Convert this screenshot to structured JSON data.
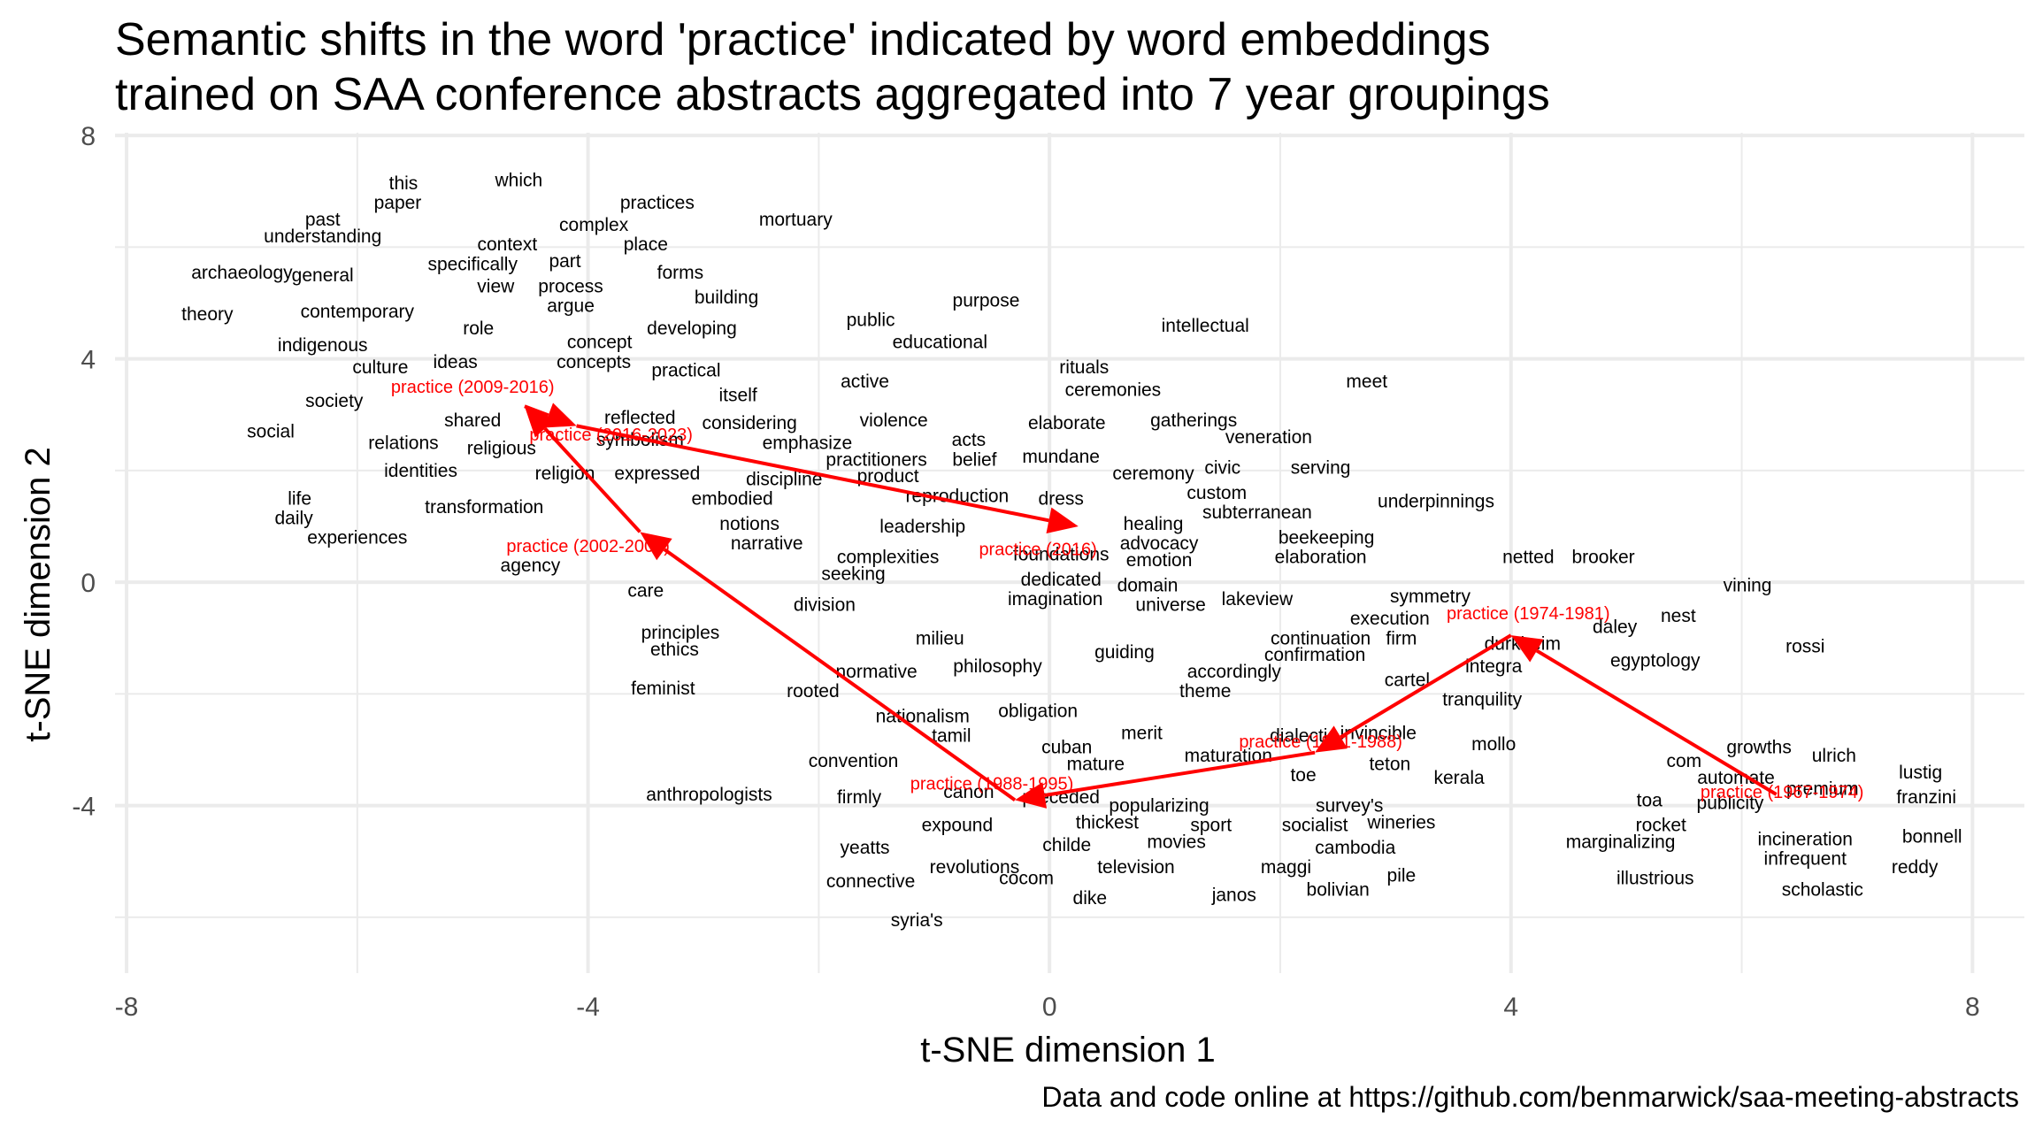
{
  "chart_data": {
    "type": "scatter",
    "title_lines": [
      "Semantic shifts in the word 'practice' indicated by word embeddings",
      "trained on SAA conference abstracts aggregated into 7 year groupings"
    ],
    "xlabel": "t-SNE dimension 1",
    "ylabel": "t-SNE dimension 2",
    "caption": "Data and code online at https://github.com/benmarwick/saa-meeting-abstracts",
    "xlim": [
      -8.1,
      8.45
    ],
    "ylim": [
      -7.0,
      8.05
    ],
    "xticks": [
      -8,
      -4,
      0,
      4,
      8
    ],
    "yticks": [
      -4,
      0,
      4,
      8
    ],
    "grid": true,
    "colors": {
      "word": "#000000",
      "practice": "#ff0000",
      "grid": "#ebebeb",
      "tick": "#4d4d4d"
    },
    "words": [
      {
        "label": "this",
        "x": -5.6,
        "y": 7.15
      },
      {
        "label": "which",
        "x": -4.6,
        "y": 7.2
      },
      {
        "label": "paper",
        "x": -5.65,
        "y": 6.8
      },
      {
        "label": "past",
        "x": -6.3,
        "y": 6.5
      },
      {
        "label": "understanding",
        "x": -6.3,
        "y": 6.2
      },
      {
        "label": "practices",
        "x": -3.4,
        "y": 6.8
      },
      {
        "label": "mortuary",
        "x": -2.2,
        "y": 6.5
      },
      {
        "label": "complex",
        "x": -3.95,
        "y": 6.4
      },
      {
        "label": "context",
        "x": -4.7,
        "y": 6.05
      },
      {
        "label": "place",
        "x": -3.5,
        "y": 6.05
      },
      {
        "label": "archaeology",
        "x": -7.0,
        "y": 5.55
      },
      {
        "label": "general",
        "x": -6.3,
        "y": 5.5
      },
      {
        "label": "specifically",
        "x": -5.0,
        "y": 5.7
      },
      {
        "label": "part",
        "x": -4.2,
        "y": 5.75
      },
      {
        "label": "forms",
        "x": -3.2,
        "y": 5.55
      },
      {
        "label": "view",
        "x": -4.8,
        "y": 5.3
      },
      {
        "label": "process",
        "x": -4.15,
        "y": 5.3
      },
      {
        "label": "building",
        "x": -2.8,
        "y": 5.1
      },
      {
        "label": "purpose",
        "x": -0.55,
        "y": 5.05
      },
      {
        "label": "theory",
        "x": -7.3,
        "y": 4.8
      },
      {
        "label": "contemporary",
        "x": -6.0,
        "y": 4.85
      },
      {
        "label": "argue",
        "x": -4.15,
        "y": 4.95
      },
      {
        "label": "public",
        "x": -1.55,
        "y": 4.7
      },
      {
        "label": "intellectual",
        "x": 1.35,
        "y": 4.6
      },
      {
        "label": "role",
        "x": -4.95,
        "y": 4.55
      },
      {
        "label": "developing",
        "x": -3.1,
        "y": 4.55
      },
      {
        "label": "educational",
        "x": -0.95,
        "y": 4.3
      },
      {
        "label": "indigenous",
        "x": -6.3,
        "y": 4.25
      },
      {
        "label": "concept",
        "x": -3.9,
        "y": 4.3
      },
      {
        "label": "ideas",
        "x": -5.15,
        "y": 3.95
      },
      {
        "label": "concepts",
        "x": -3.95,
        "y": 3.95
      },
      {
        "label": "culture",
        "x": -5.8,
        "y": 3.85
      },
      {
        "label": "practical",
        "x": -3.15,
        "y": 3.8
      },
      {
        "label": "rituals",
        "x": 0.3,
        "y": 3.85
      },
      {
        "label": "active",
        "x": -1.6,
        "y": 3.6
      },
      {
        "label": "meet",
        "x": 2.75,
        "y": 3.6
      },
      {
        "label": "ceremonies",
        "x": 0.55,
        "y": 3.45
      },
      {
        "label": "itself",
        "x": -2.7,
        "y": 3.35
      },
      {
        "label": "society",
        "x": -6.2,
        "y": 3.25
      },
      {
        "label": "shared",
        "x": -5.0,
        "y": 2.9
      },
      {
        "label": "reflected",
        "x": -3.55,
        "y": 2.95
      },
      {
        "label": "considering",
        "x": -2.6,
        "y": 2.85
      },
      {
        "label": "violence",
        "x": -1.35,
        "y": 2.9
      },
      {
        "label": "elaborate",
        "x": 0.15,
        "y": 2.85
      },
      {
        "label": "gatherings",
        "x": 1.25,
        "y": 2.9
      },
      {
        "label": "social",
        "x": -6.75,
        "y": 2.7
      },
      {
        "label": "acts",
        "x": -0.7,
        "y": 2.55
      },
      {
        "label": "veneration",
        "x": 1.9,
        "y": 2.6
      },
      {
        "label": "symbolism",
        "x": -3.55,
        "y": 2.55
      },
      {
        "label": "emphasize",
        "x": -2.1,
        "y": 2.5
      },
      {
        "label": "relations",
        "x": -5.6,
        "y": 2.5
      },
      {
        "label": "religious",
        "x": -4.75,
        "y": 2.4
      },
      {
        "label": "practitioners",
        "x": -1.5,
        "y": 2.2
      },
      {
        "label": "belief",
        "x": -0.65,
        "y": 2.2
      },
      {
        "label": "mundane",
        "x": 0.1,
        "y": 2.25
      },
      {
        "label": "identities",
        "x": -5.45,
        "y": 2.0
      },
      {
        "label": "religion",
        "x": -4.2,
        "y": 1.95
      },
      {
        "label": "expressed",
        "x": -3.4,
        "y": 1.95
      },
      {
        "label": "product",
        "x": -1.4,
        "y": 1.9
      },
      {
        "label": "ceremony",
        "x": 0.9,
        "y": 1.95
      },
      {
        "label": "civic",
        "x": 1.5,
        "y": 2.05
      },
      {
        "label": "serving",
        "x": 2.35,
        "y": 2.05
      },
      {
        "label": "discipline",
        "x": -2.3,
        "y": 1.85
      },
      {
        "label": "custom",
        "x": 1.45,
        "y": 1.6
      },
      {
        "label": "reproduction",
        "x": -0.8,
        "y": 1.55
      },
      {
        "label": "dress",
        "x": 0.1,
        "y": 1.5
      },
      {
        "label": "underpinnings",
        "x": 3.35,
        "y": 1.45
      },
      {
        "label": "life",
        "x": -6.5,
        "y": 1.5
      },
      {
        "label": "transformation",
        "x": -4.9,
        "y": 1.35
      },
      {
        "label": "embodied",
        "x": -2.75,
        "y": 1.5
      },
      {
        "label": "subterranean",
        "x": 1.8,
        "y": 1.25
      },
      {
        "label": "daily",
        "x": -6.55,
        "y": 1.15
      },
      {
        "label": "notions",
        "x": -2.6,
        "y": 1.05
      },
      {
        "label": "leadership",
        "x": -1.1,
        "y": 1.0
      },
      {
        "label": "healing",
        "x": 0.9,
        "y": 1.05
      },
      {
        "label": "beekeeping",
        "x": 2.4,
        "y": 0.8
      },
      {
        "label": "experiences",
        "x": -6.0,
        "y": 0.8
      },
      {
        "label": "narrative",
        "x": -2.45,
        "y": 0.7
      },
      {
        "label": "advocacy",
        "x": 0.95,
        "y": 0.7
      },
      {
        "label": "complexities",
        "x": -1.4,
        "y": 0.45
      },
      {
        "label": "foundations",
        "x": 0.1,
        "y": 0.5
      },
      {
        "label": "emotion",
        "x": 0.95,
        "y": 0.4
      },
      {
        "label": "elaboration",
        "x": 2.35,
        "y": 0.45
      },
      {
        "label": "netted",
        "x": 4.15,
        "y": 0.45
      },
      {
        "label": "brooker",
        "x": 4.8,
        "y": 0.45
      },
      {
        "label": "agency",
        "x": -4.5,
        "y": 0.3
      },
      {
        "label": "seeking",
        "x": -1.7,
        "y": 0.15
      },
      {
        "label": "dedicated",
        "x": 0.1,
        "y": 0.05
      },
      {
        "label": "domain",
        "x": 0.85,
        "y": -0.05
      },
      {
        "label": "vining",
        "x": 6.05,
        "y": -0.05
      },
      {
        "label": "care",
        "x": -3.5,
        "y": -0.15
      },
      {
        "label": "imagination",
        "x": 0.05,
        "y": -0.3
      },
      {
        "label": "lakeview",
        "x": 1.8,
        "y": -0.3
      },
      {
        "label": "symmetry",
        "x": 3.3,
        "y": -0.25
      },
      {
        "label": "division",
        "x": -1.95,
        "y": -0.4
      },
      {
        "label": "universe",
        "x": 1.05,
        "y": -0.4
      },
      {
        "label": "execution",
        "x": 2.95,
        "y": -0.65
      },
      {
        "label": "nest",
        "x": 5.45,
        "y": -0.6
      },
      {
        "label": "daley",
        "x": 4.9,
        "y": -0.8
      },
      {
        "label": "principles",
        "x": -3.2,
        "y": -0.9
      },
      {
        "label": "milieu",
        "x": -0.95,
        "y": -1.0
      },
      {
        "label": "continuation",
        "x": 2.35,
        "y": -1.0
      },
      {
        "label": "firm",
        "x": 3.05,
        "y": -1.0
      },
      {
        "label": "durkheim",
        "x": 4.1,
        "y": -1.1
      },
      {
        "label": "rossi",
        "x": 6.55,
        "y": -1.15
      },
      {
        "label": "ethics",
        "x": -3.25,
        "y": -1.2
      },
      {
        "label": "guiding",
        "x": 0.65,
        "y": -1.25
      },
      {
        "label": "confirmation",
        "x": 2.3,
        "y": -1.3
      },
      {
        "label": "egyptology",
        "x": 5.25,
        "y": -1.4
      },
      {
        "label": "philosophy",
        "x": -0.45,
        "y": -1.5
      },
      {
        "label": "integra",
        "x": 3.85,
        "y": -1.5
      },
      {
        "label": "normative",
        "x": -1.5,
        "y": -1.6
      },
      {
        "label": "accordingly",
        "x": 1.6,
        "y": -1.6
      },
      {
        "label": "cartel",
        "x": 3.1,
        "y": -1.75
      },
      {
        "label": "feminist",
        "x": -3.35,
        "y": -1.9
      },
      {
        "label": "rooted",
        "x": -2.05,
        "y": -1.95
      },
      {
        "label": "theme",
        "x": 1.35,
        "y": -1.95
      },
      {
        "label": "tranquility",
        "x": 3.75,
        "y": -2.1
      },
      {
        "label": "nationalism",
        "x": -1.1,
        "y": -2.4
      },
      {
        "label": "obligation",
        "x": -0.1,
        "y": -2.3
      },
      {
        "label": "merit",
        "x": 0.8,
        "y": -2.7
      },
      {
        "label": "tamil",
        "x": -0.85,
        "y": -2.75
      },
      {
        "label": "dialectic",
        "x": 2.2,
        "y": -2.75
      },
      {
        "label": "invincible",
        "x": 2.85,
        "y": -2.7
      },
      {
        "label": "mollo",
        "x": 3.85,
        "y": -2.9
      },
      {
        "label": "growths",
        "x": 6.15,
        "y": -2.95
      },
      {
        "label": "cuban",
        "x": 0.15,
        "y": -2.95
      },
      {
        "label": "maturation",
        "x": 1.55,
        "y": -3.1
      },
      {
        "label": "ulrich",
        "x": 6.8,
        "y": -3.1
      },
      {
        "label": "convention",
        "x": -1.7,
        "y": -3.2
      },
      {
        "label": "mature",
        "x": 0.4,
        "y": -3.25
      },
      {
        "label": "teton",
        "x": 2.95,
        "y": -3.25
      },
      {
        "label": "com",
        "x": 5.5,
        "y": -3.2
      },
      {
        "label": "toe",
        "x": 2.2,
        "y": -3.45
      },
      {
        "label": "kerala",
        "x": 3.55,
        "y": -3.5
      },
      {
        "label": "automate",
        "x": 5.95,
        "y": -3.5
      },
      {
        "label": "lustig",
        "x": 7.55,
        "y": -3.4
      },
      {
        "label": "premium",
        "x": 6.7,
        "y": -3.7
      },
      {
        "label": "canon",
        "x": -0.7,
        "y": -3.75
      },
      {
        "label": "preceded",
        "x": 0.1,
        "y": -3.85
      },
      {
        "label": "anthropologists",
        "x": -2.95,
        "y": -3.8
      },
      {
        "label": "firmly",
        "x": -1.65,
        "y": -3.85
      },
      {
        "label": "popularizing",
        "x": 0.95,
        "y": -4.0
      },
      {
        "label": "survey's",
        "x": 2.6,
        "y": -4.0
      },
      {
        "label": "toa",
        "x": 5.2,
        "y": -3.9
      },
      {
        "label": "publicity",
        "x": 5.9,
        "y": -3.95
      },
      {
        "label": "franzini",
        "x": 7.6,
        "y": -3.85
      },
      {
        "label": "thickest",
        "x": 0.5,
        "y": -4.3
      },
      {
        "label": "expound",
        "x": -0.8,
        "y": -4.35
      },
      {
        "label": "sport",
        "x": 1.4,
        "y": -4.35
      },
      {
        "label": "socialist",
        "x": 2.3,
        "y": -4.35
      },
      {
        "label": "wineries",
        "x": 3.05,
        "y": -4.3
      },
      {
        "label": "rocket",
        "x": 5.3,
        "y": -4.35
      },
      {
        "label": "bonnell",
        "x": 7.65,
        "y": -4.55
      },
      {
        "label": "childe",
        "x": 0.15,
        "y": -4.7
      },
      {
        "label": "movies",
        "x": 1.1,
        "y": -4.65
      },
      {
        "label": "cambodia",
        "x": 2.65,
        "y": -4.75
      },
      {
        "label": "marginalizing",
        "x": 4.95,
        "y": -4.65
      },
      {
        "label": "incineration",
        "x": 6.55,
        "y": -4.6
      },
      {
        "label": "yeatts",
        "x": -1.6,
        "y": -4.75
      },
      {
        "label": "revolutions",
        "x": -0.65,
        "y": -5.1
      },
      {
        "label": "television",
        "x": 0.75,
        "y": -5.1
      },
      {
        "label": "infrequent",
        "x": 6.55,
        "y": -4.95
      },
      {
        "label": "maggi",
        "x": 2.05,
        "y": -5.1
      },
      {
        "label": "pile",
        "x": 3.05,
        "y": -5.25
      },
      {
        "label": "reddy",
        "x": 7.5,
        "y": -5.1
      },
      {
        "label": "connective",
        "x": -1.55,
        "y": -5.35
      },
      {
        "label": "cocom",
        "x": -0.2,
        "y": -5.3
      },
      {
        "label": "illustrious",
        "x": 5.25,
        "y": -5.3
      },
      {
        "label": "scholastic",
        "x": 6.7,
        "y": -5.5
      },
      {
        "label": "bolivian",
        "x": 2.5,
        "y": -5.5
      },
      {
        "label": "dike",
        "x": 0.35,
        "y": -5.65
      },
      {
        "label": "janos",
        "x": 1.6,
        "y": -5.6
      },
      {
        "label": "syria's",
        "x": -1.15,
        "y": -6.05
      }
    ],
    "practice_points": [
      {
        "label": "practice (1967-1974)",
        "x": 6.3,
        "y": -3.8
      },
      {
        "label": "practice (1974-1981)",
        "x": 4.0,
        "y": -0.95
      },
      {
        "label": "practice (1981-1988)",
        "x": 2.3,
        "y": -3.05
      },
      {
        "label": "practice (1988-1995)",
        "x": -0.3,
        "y": -3.9
      },
      {
        "label": "practice (2002-2009)",
        "x": -3.55,
        "y": 0.9
      },
      {
        "label": "practice (2009-2016)",
        "x": -4.55,
        "y": 3.15
      },
      {
        "label": "practice (2016-2023)",
        "x": -4.1,
        "y": 2.8
      },
      {
        "label": "practice (2016)",
        "x": 0.25,
        "y": 1.0
      }
    ],
    "practice_labels": [
      {
        "label": "practice (1967-1974)",
        "x": 6.35,
        "y": -3.75
      },
      {
        "label": "practice (1974-1981)",
        "x": 4.15,
        "y": -0.55
      },
      {
        "label": "practice (1981-1988)",
        "x": 2.35,
        "y": -2.85
      },
      {
        "label": "practice (1988-1995)",
        "x": -0.5,
        "y": -3.6
      },
      {
        "label": "practice (2002-2009)",
        "x": -4.0,
        "y": 0.65
      },
      {
        "label": "practice (2009-2016)",
        "x": -5.0,
        "y": 3.5
      },
      {
        "label": "practice (2016-2023)",
        "x": -3.8,
        "y": 2.65
      },
      {
        "label": "practice (2016)",
        "x": -0.1,
        "y": 0.6
      }
    ],
    "arrows": [
      {
        "from": "practice (1967-1974)",
        "to": "practice (1974-1981)"
      },
      {
        "from": "practice (1974-1981)",
        "to": "practice (1981-1988)"
      },
      {
        "from": "practice (1981-1988)",
        "to": "practice (1988-1995)"
      },
      {
        "from": "practice (1988-1995)",
        "to": "practice (2002-2009)"
      },
      {
        "from": "practice (2002-2009)",
        "to": "practice (2009-2016)"
      },
      {
        "from": "practice (2009-2016)",
        "to": "practice (2016-2023)"
      },
      {
        "from": "practice (2016-2023)",
        "to": "practice (2016)"
      }
    ]
  }
}
